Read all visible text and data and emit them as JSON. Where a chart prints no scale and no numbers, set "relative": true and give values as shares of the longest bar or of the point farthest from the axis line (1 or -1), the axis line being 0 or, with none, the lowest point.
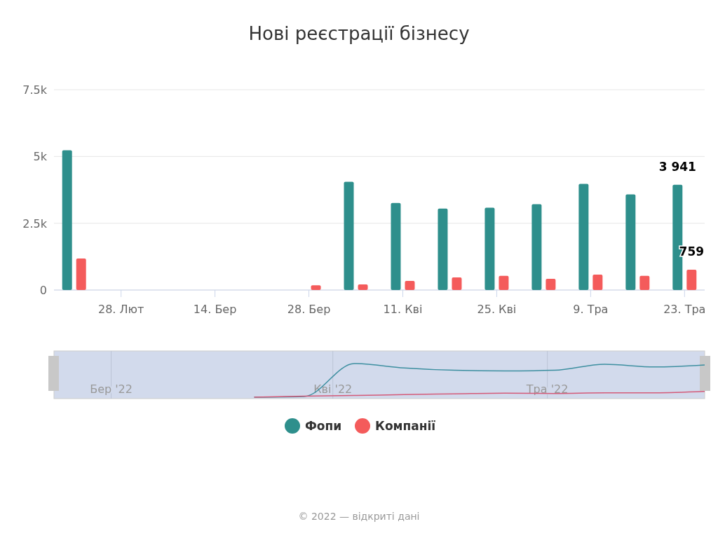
{
  "chart_data": [
    {
      "type": "bar",
      "title": "Нові реєстрації бізнесу",
      "x": [
        "2022-02-21",
        "2022-02-28",
        "2022-03-07",
        "2022-03-14",
        "2022-03-28",
        "2022-04-04",
        "2022-04-11",
        "2022-04-18",
        "2022-04-25",
        "2022-05-02",
        "2022-05-09",
        "2022-05-16",
        "2022-05-23"
      ],
      "series": [
        {
          "name": "Фопи",
          "color": "#2e8f8c",
          "values": [
            5230,
            0,
            0,
            0,
            null,
            4050,
            3260,
            3050,
            3080,
            3210,
            3970,
            3580,
            3941
          ],
          "value_labels": [
            null,
            null,
            null,
            null,
            null,
            null,
            null,
            null,
            null,
            null,
            null,
            null,
            "3 941"
          ]
        },
        {
          "name": "Компанії",
          "color": "#f45b5b",
          "values": [
            1180,
            0,
            0,
            0,
            180,
            210,
            340,
            470,
            530,
            420,
            580,
            530,
            759
          ],
          "value_labels": [
            null,
            null,
            null,
            null,
            null,
            null,
            null,
            null,
            null,
            null,
            null,
            null,
            "759"
          ]
        }
      ],
      "xlim": [
        "2022-02-18",
        "2022-05-26"
      ],
      "xticks": [
        {
          "value": "2022-02-28",
          "label": "28. Лют"
        },
        {
          "value": "2022-03-14",
          "label": "14. Бер"
        },
        {
          "value": "2022-03-28",
          "label": "28. Бер"
        },
        {
          "value": "2022-04-11",
          "label": "11. Кві"
        },
        {
          "value": "2022-04-25",
          "label": "25. Кві"
        },
        {
          "value": "2022-05-09",
          "label": "9. Тра"
        },
        {
          "value": "2022-05-23",
          "label": "23. Тра"
        }
      ],
      "ylim": [
        0,
        7500
      ],
      "yticks": [
        {
          "value": 0,
          "label": "0"
        },
        {
          "value": 2500,
          "label": "2.5k"
        },
        {
          "value": 5000,
          "label": "5k"
        },
        {
          "value": 7500,
          "label": "7.5k"
        }
      ],
      "grid": "y",
      "legend": "bottom",
      "marker": "circle",
      "annotations": [
        "© 2022 — відкриті дані"
      ]
    },
    {
      "type": "line",
      "relative": true,
      "x": [
        "2022-03-21",
        "2022-03-28",
        "2022-04-04",
        "2022-04-11",
        "2022-04-18",
        "2022-04-25",
        "2022-05-02",
        "2022-05-09",
        "2022-05-16",
        "2022-05-23"
      ],
      "series": [
        {
          "color": "#3d8fa0",
          "values": [
            0,
            0.02,
            1,
            0.87,
            0.8,
            0.78,
            0.8,
            0.98,
            0.9,
            0.96
          ]
        },
        {
          "color": "#d45a78",
          "values": [
            0,
            0.03,
            0.05,
            0.08,
            0.1,
            0.12,
            0.11,
            0.13,
            0.13,
            0.17
          ]
        }
      ],
      "xlim": [
        "2022-02-21",
        "2022-05-23"
      ],
      "xticks": [
        {
          "value": "2022-03-01",
          "label": "Бер '22"
        },
        {
          "value": "2022-04-01",
          "label": "Кві '22"
        },
        {
          "value": "2022-05-01",
          "label": "Тра '22"
        }
      ],
      "grid": "x",
      "tick_labels": "x"
    }
  ]
}
